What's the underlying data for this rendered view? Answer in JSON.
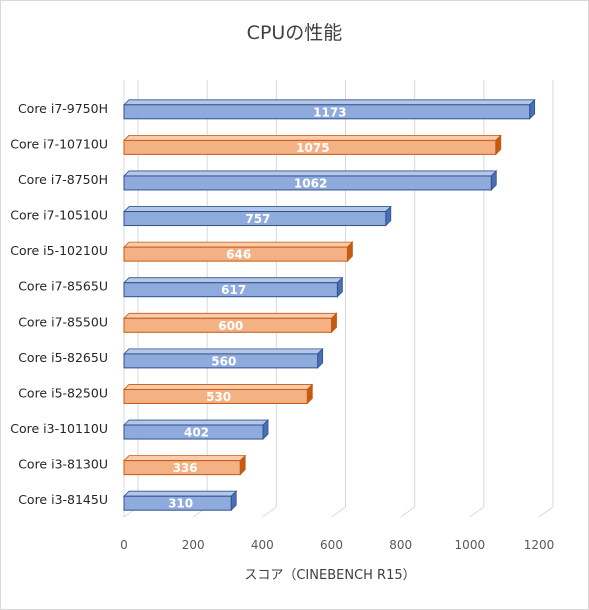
{
  "chart_data": {
    "type": "bar",
    "orientation": "horizontal",
    "title": "CPUの性能",
    "xlabel": "スコア（CINEBENCH R15）",
    "ylabel": "",
    "categories": [
      "Core i7-9750H",
      "Core i7-10710U",
      "Core i7-8750H",
      "Core i7-10510U",
      "Core i5-10210U",
      "Core i7-8565U",
      "Core i7-8550U",
      "Core i5-8265U",
      "Core i5-8250U",
      "Core i3-10110U",
      "Core i3-8130U",
      "Core i3-8145U"
    ],
    "values": [
      1173,
      1075,
      1062,
      757,
      646,
      617,
      600,
      560,
      530,
      402,
      336,
      310
    ],
    "highlight": [
      false,
      true,
      false,
      false,
      true,
      false,
      true,
      false,
      true,
      false,
      true,
      false
    ],
    "xlim": [
      0,
      1200
    ],
    "xticks": [
      0,
      200,
      400,
      600,
      800,
      1000,
      1200
    ],
    "grid": true,
    "colors": {
      "normal_fill": "#8faadc",
      "normal_top": "#b4c7e7",
      "normal_side": "#4a6fb5",
      "normal_edge": "#2f528f",
      "highlight_fill": "#f4b183",
      "highlight_top": "#f8cbad",
      "highlight_side": "#c55a11",
      "highlight_edge": "#c55a11"
    }
  }
}
